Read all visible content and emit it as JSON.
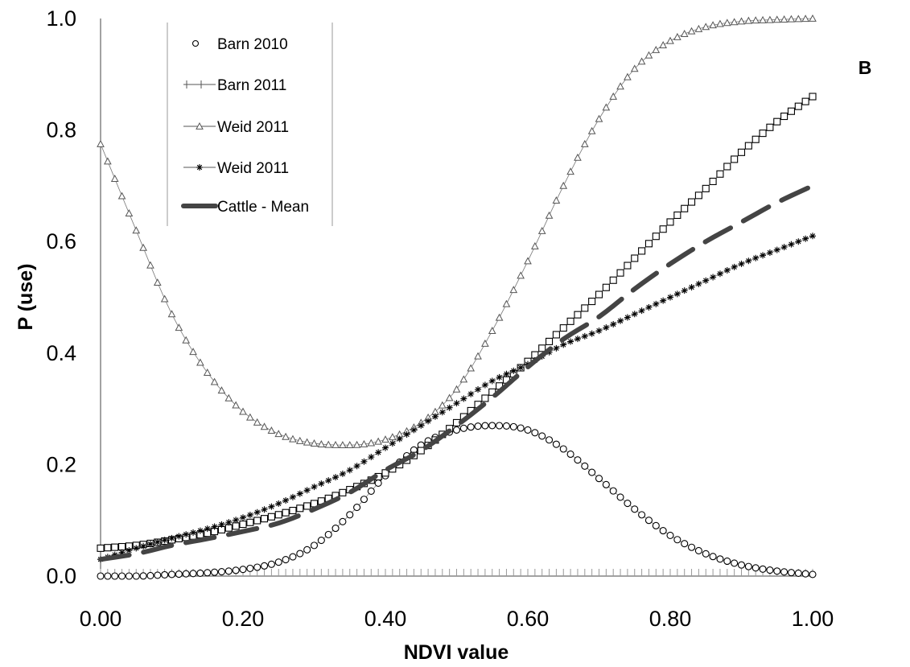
{
  "chart_data": {
    "type": "line",
    "title": "",
    "panel_label": "B",
    "xlabel": "NDVI value",
    "ylabel": "P (use)",
    "xlim": [
      0,
      1
    ],
    "ylim": [
      0,
      1
    ],
    "x_ticks": [
      "0.00",
      "0.20",
      "0.40",
      "0.60",
      "0.80",
      "1.00"
    ],
    "y_ticks": [
      "0.0",
      "0.2",
      "0.4",
      "0.6",
      "0.8",
      "1.0"
    ],
    "grid": false,
    "legend_position": "top-left",
    "x": [
      0.0,
      0.05,
      0.1,
      0.15,
      0.2,
      0.25,
      0.3,
      0.35,
      0.4,
      0.45,
      0.5,
      0.55,
      0.6,
      0.65,
      0.7,
      0.75,
      0.8,
      0.85,
      0.9,
      0.95,
      1.0
    ],
    "series": [
      {
        "name": "Barn 2010",
        "marker": "circle",
        "values": [
          0.0,
          0.0,
          0.003,
          0.006,
          0.012,
          0.025,
          0.055,
          0.11,
          0.18,
          0.235,
          0.262,
          0.27,
          0.262,
          0.228,
          0.175,
          0.12,
          0.073,
          0.04,
          0.02,
          0.009,
          0.003
        ]
      },
      {
        "name": "Barn 2011",
        "marker": "square",
        "values": [
          0.05,
          0.055,
          0.065,
          0.077,
          0.093,
          0.11,
          0.13,
          0.155,
          0.185,
          0.225,
          0.275,
          0.33,
          0.385,
          0.445,
          0.505,
          0.57,
          0.635,
          0.695,
          0.76,
          0.815,
          0.86
        ]
      },
      {
        "name": "Weid 2011",
        "marker": "triangle",
        "values": [
          0.775,
          0.62,
          0.47,
          0.365,
          0.295,
          0.255,
          0.238,
          0.235,
          0.245,
          0.275,
          0.335,
          0.44,
          0.565,
          0.7,
          0.82,
          0.91,
          0.96,
          0.985,
          0.995,
          0.998,
          1.0
        ]
      },
      {
        "name": "Weid 2011",
        "marker": "asterisk",
        "values": [
          0.03,
          0.05,
          0.068,
          0.085,
          0.105,
          0.13,
          0.16,
          0.19,
          0.23,
          0.27,
          0.31,
          0.35,
          0.38,
          0.415,
          0.44,
          0.47,
          0.5,
          0.53,
          0.56,
          0.585,
          0.61
        ]
      },
      {
        "name": "Cattle - Mean",
        "marker": "thick-dashed",
        "values": [
          0.03,
          0.04,
          0.055,
          0.067,
          0.08,
          0.095,
          0.12,
          0.15,
          0.19,
          0.225,
          0.27,
          0.32,
          0.375,
          0.425,
          0.465,
          0.515,
          0.56,
          0.6,
          0.635,
          0.67,
          0.7
        ]
      }
    ]
  }
}
